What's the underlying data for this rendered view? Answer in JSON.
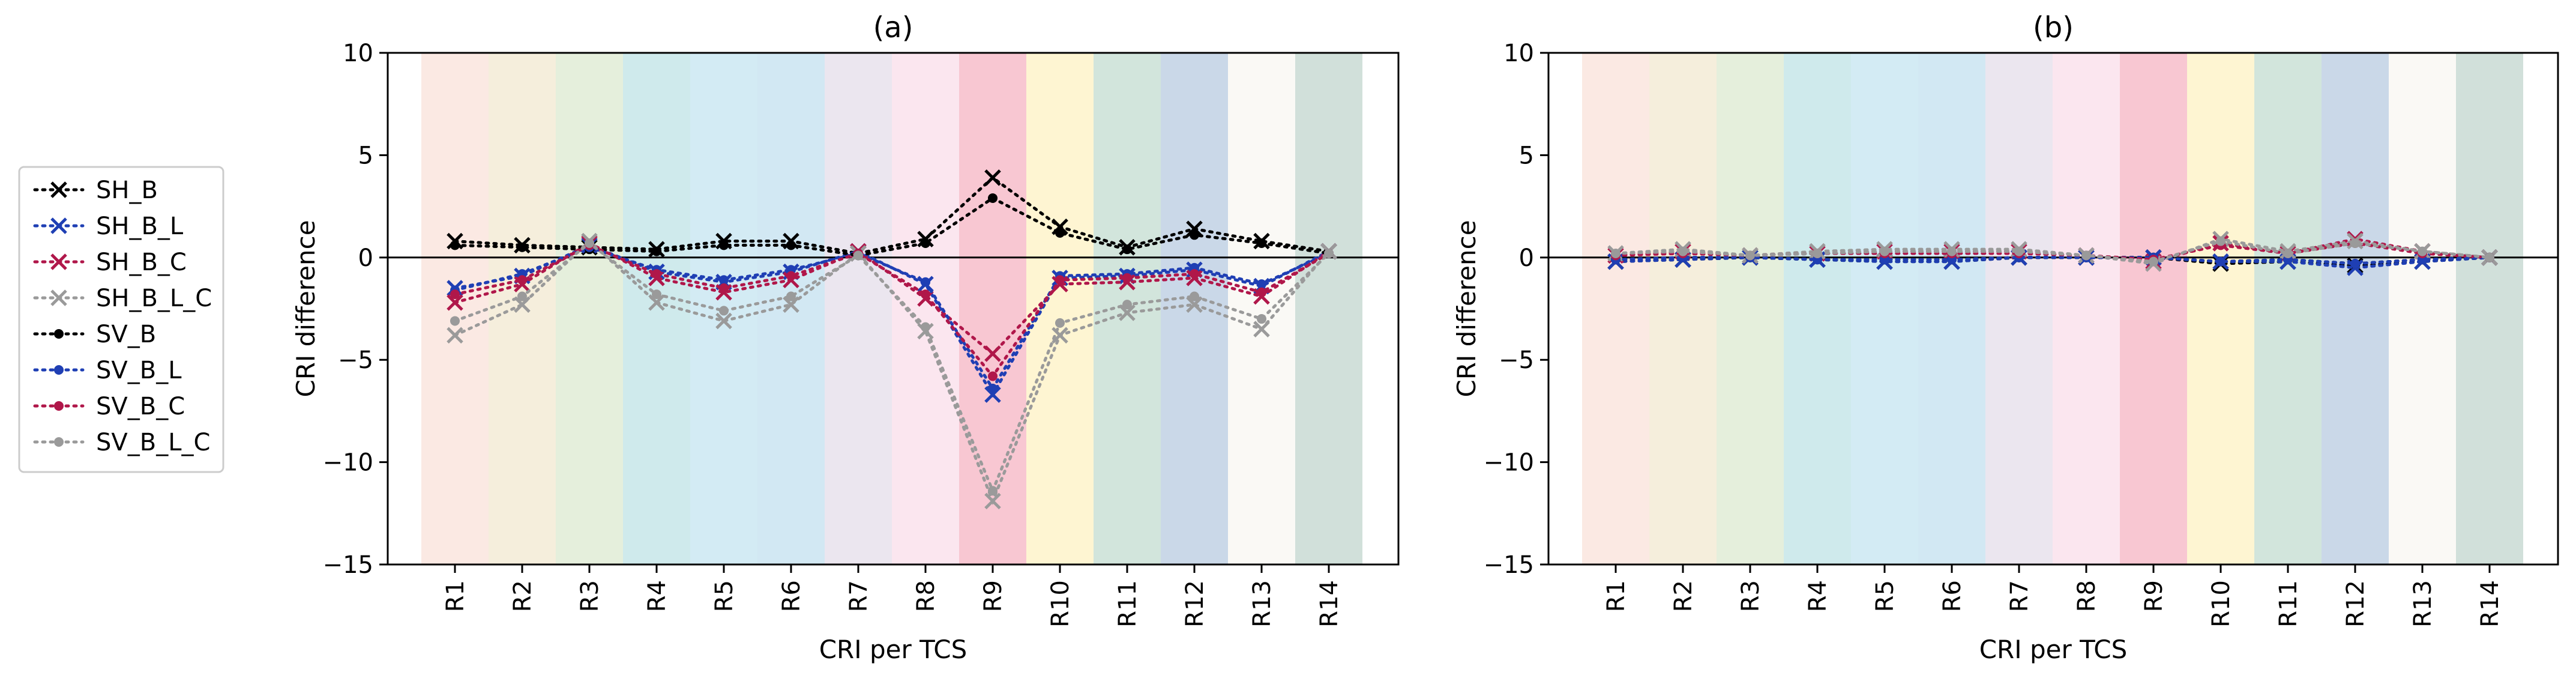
{
  "legend": {
    "location": "left",
    "entries": [
      {
        "label": "SH_B",
        "color": "#000000",
        "marker": "x"
      },
      {
        "label": "SH_B_L",
        "color": "#1f3fb4",
        "marker": "x"
      },
      {
        "label": "SH_B_C",
        "color": "#b0174a",
        "marker": "x"
      },
      {
        "label": "SH_B_L_C",
        "color": "#9a9a9a",
        "marker": "x"
      },
      {
        "label": "SV_B",
        "color": "#000000",
        "marker": "o"
      },
      {
        "label": "SV_B_L",
        "color": "#1f3fb4",
        "marker": "o"
      },
      {
        "label": "SV_B_C",
        "color": "#b0174a",
        "marker": "o"
      },
      {
        "label": "SV_B_L_C",
        "color": "#9a9a9a",
        "marker": "o"
      }
    ]
  },
  "band_colors": [
    "#fbe9e3",
    "#f5eedc",
    "#e5efdc",
    "#cfeaec",
    "#d3ebf4",
    "#d2e8f3",
    "#ebe6ef",
    "#fbe6ef",
    "#f8c7d2",
    "#fef5d2",
    "#d2e5dc",
    "#cad8e8",
    "#faf9f5",
    "#d1e0da"
  ],
  "chart_data": [
    {
      "type": "line",
      "title": "(a)",
      "xlabel": "CRI per TCS",
      "ylabel": "CRI difference",
      "categories": [
        "R1",
        "R2",
        "R3",
        "R4",
        "R5",
        "R6",
        "R7",
        "R8",
        "R9",
        "R10",
        "R11",
        "R12",
        "R13",
        "R14"
      ],
      "ylim": [
        -15,
        10
      ],
      "yticks": [
        "10",
        "5",
        "0",
        "−5",
        "−10",
        "−15"
      ],
      "ytick_values": [
        10,
        5,
        0,
        -5,
        -10,
        -15
      ],
      "zero_line": true,
      "series": [
        {
          "name": "SH_B",
          "values": [
            0.8,
            0.6,
            0.5,
            0.4,
            0.8,
            0.8,
            0.2,
            0.9,
            3.9,
            1.5,
            0.5,
            1.4,
            0.8,
            0.3
          ]
        },
        {
          "name": "SH_B_L",
          "values": [
            -1.5,
            -0.9,
            0.6,
            -0.7,
            -1.2,
            -0.7,
            0.3,
            -1.3,
            -6.7,
            -1.0,
            -0.9,
            -0.6,
            -1.4,
            0.3
          ]
        },
        {
          "name": "SH_B_C",
          "values": [
            -2.2,
            -1.3,
            0.7,
            -1.0,
            -1.7,
            -1.1,
            0.3,
            -2.0,
            -4.7,
            -1.3,
            -1.2,
            -1.0,
            -1.9,
            0.3
          ]
        },
        {
          "name": "SH_B_L_C",
          "values": [
            -3.8,
            -2.3,
            0.8,
            -2.2,
            -3.1,
            -2.3,
            0.2,
            -3.6,
            -11.9,
            -3.8,
            -2.7,
            -2.3,
            -3.5,
            0.3
          ]
        },
        {
          "name": "SV_B",
          "values": [
            0.6,
            0.5,
            0.4,
            0.3,
            0.6,
            0.6,
            0.1,
            0.7,
            2.9,
            1.2,
            0.4,
            1.1,
            0.7,
            0.2
          ]
        },
        {
          "name": "SV_B_L",
          "values": [
            -1.6,
            -0.8,
            0.5,
            -0.6,
            -1.1,
            -0.6,
            0.2,
            -1.2,
            -6.4,
            -0.9,
            -0.8,
            -0.5,
            -1.3,
            0.2
          ]
        },
        {
          "name": "SV_B_C",
          "values": [
            -1.8,
            -1.1,
            0.6,
            -0.8,
            -1.5,
            -0.9,
            0.2,
            -1.8,
            -5.8,
            -1.1,
            -1.0,
            -0.8,
            -1.7,
            0.2
          ]
        },
        {
          "name": "SV_B_L_C",
          "values": [
            -3.1,
            -1.9,
            0.7,
            -1.8,
            -2.6,
            -1.9,
            0.1,
            -3.4,
            -11.4,
            -3.2,
            -2.3,
            -1.9,
            -3.0,
            0.2
          ]
        }
      ]
    },
    {
      "type": "line",
      "title": "(b)",
      "xlabel": "CRI per TCS",
      "ylabel": "CRI difference",
      "categories": [
        "R1",
        "R2",
        "R3",
        "R4",
        "R5",
        "R6",
        "R7",
        "R8",
        "R9",
        "R10",
        "R11",
        "R12",
        "R13",
        "R14"
      ],
      "ylim": [
        -15,
        10
      ],
      "yticks": [
        "10",
        "5",
        "0",
        "−5",
        "−10",
        "−15"
      ],
      "ytick_values": [
        10,
        5,
        0,
        -5,
        -10,
        -15
      ],
      "zero_line": true,
      "series": [
        {
          "name": "SH_B",
          "values": [
            -0.2,
            -0.1,
            0.0,
            -0.1,
            -0.2,
            -0.2,
            0.0,
            0.0,
            0.0,
            -0.3,
            -0.2,
            -0.4,
            -0.2,
            0.0
          ]
        },
        {
          "name": "SH_B_L",
          "values": [
            -0.2,
            -0.1,
            0.0,
            -0.1,
            -0.2,
            -0.2,
            0.0,
            0.0,
            0.0,
            -0.2,
            -0.2,
            -0.5,
            -0.2,
            0.0
          ]
        },
        {
          "name": "SH_B_C",
          "values": [
            0.1,
            0.3,
            0.1,
            0.2,
            0.3,
            0.3,
            0.3,
            0.1,
            -0.2,
            0.7,
            0.2,
            0.9,
            0.3,
            0.0
          ]
        },
        {
          "name": "SH_B_L_C",
          "values": [
            0.2,
            0.4,
            0.1,
            0.3,
            0.4,
            0.4,
            0.4,
            0.1,
            -0.3,
            0.9,
            0.3,
            0.8,
            0.3,
            0.0
          ]
        },
        {
          "name": "SV_B",
          "values": [
            -0.1,
            0.0,
            0.0,
            -0.1,
            -0.1,
            -0.1,
            0.0,
            0.0,
            0.0,
            -0.2,
            -0.1,
            -0.3,
            -0.1,
            0.0
          ]
        },
        {
          "name": "SV_B_L",
          "values": [
            -0.1,
            0.0,
            0.0,
            -0.1,
            -0.1,
            -0.1,
            0.0,
            0.0,
            0.0,
            -0.2,
            -0.1,
            -0.3,
            -0.1,
            0.0
          ]
        },
        {
          "name": "SV_B_C",
          "values": [
            0.1,
            0.2,
            0.1,
            0.2,
            0.2,
            0.2,
            0.2,
            0.1,
            -0.1,
            0.6,
            0.2,
            0.7,
            0.2,
            0.0
          ]
        },
        {
          "name": "SV_B_L_C",
          "values": [
            0.2,
            0.3,
            0.1,
            0.2,
            0.3,
            0.3,
            0.3,
            0.1,
            -0.2,
            0.8,
            0.2,
            0.7,
            0.3,
            0.0
          ]
        }
      ]
    }
  ]
}
